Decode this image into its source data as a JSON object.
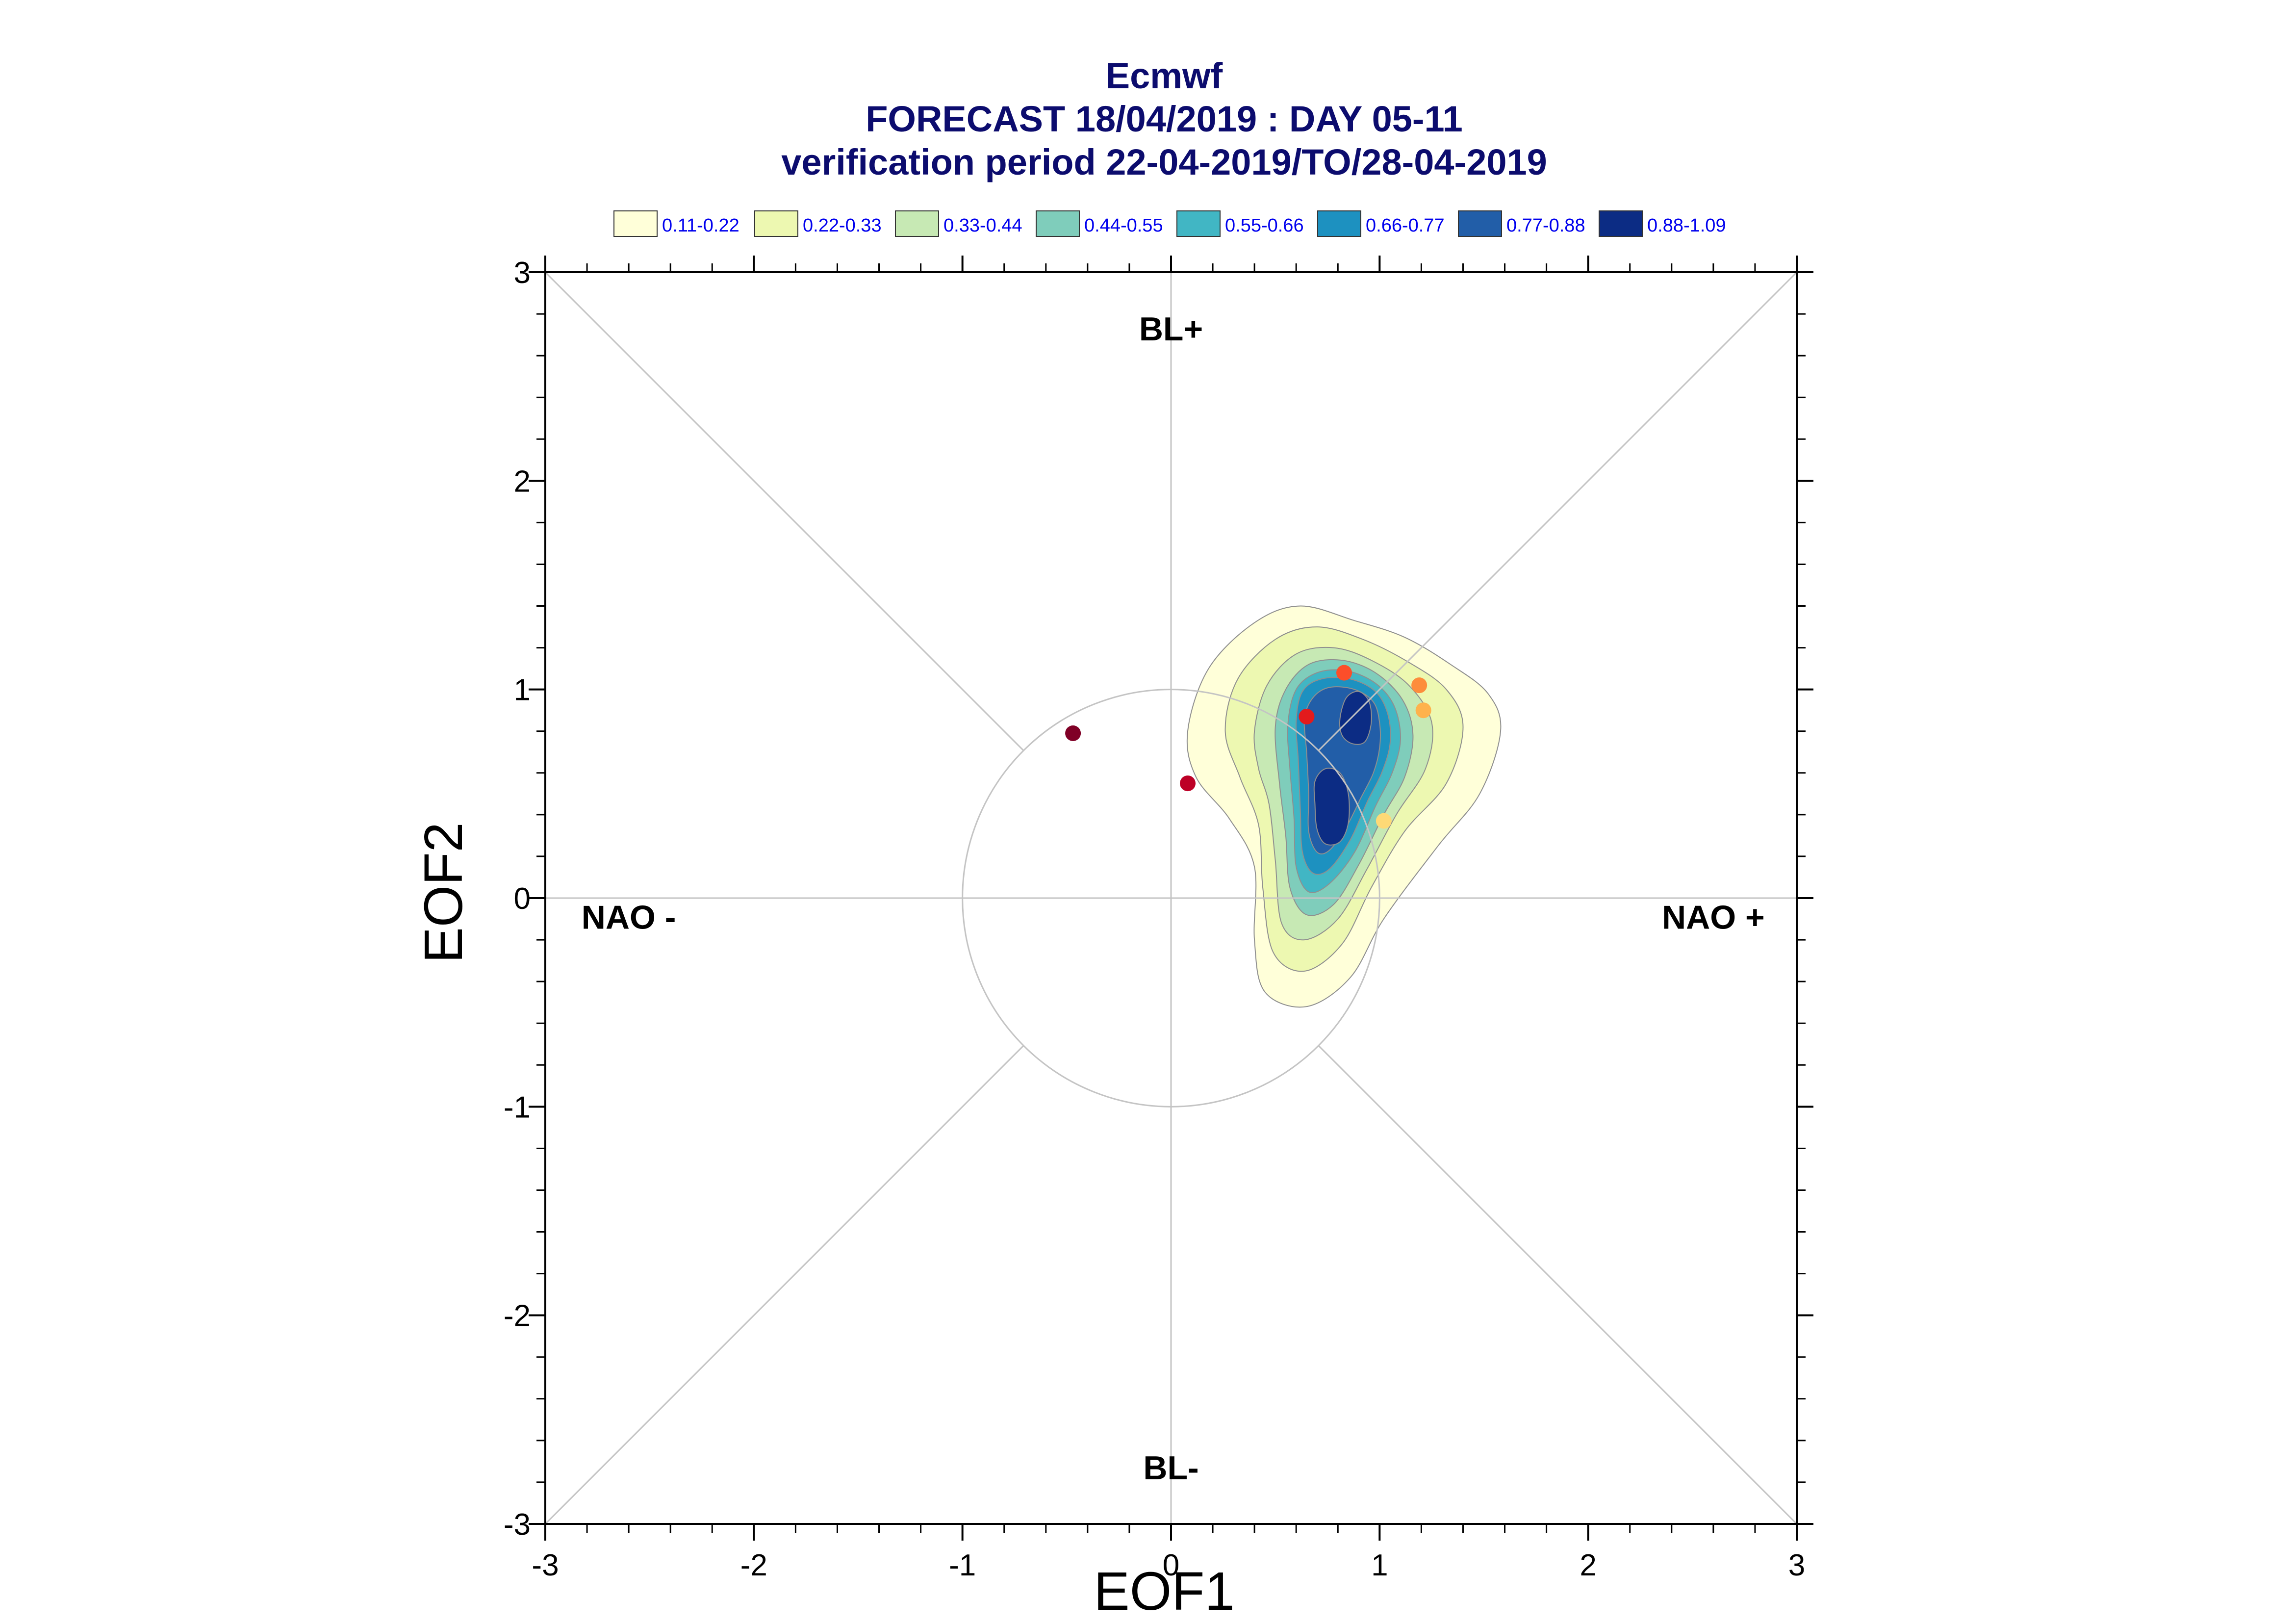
{
  "chart_data": {
    "type": "scatter",
    "title": "Ecmwf",
    "subtitle": "FORECAST 18/04/2019 : DAY 05-11",
    "subtitle2": "verification period 22-04-2019/TO/28-04-2019",
    "xlabel": "EOF1",
    "ylabel": "EOF2",
    "xlim": [
      -3,
      3
    ],
    "ylim": [
      -3,
      3
    ],
    "xticks": [
      "-3",
      "-2",
      "-1",
      "0",
      "1",
      "2",
      "3"
    ],
    "yticks": [
      "-3",
      "-2",
      "-1",
      "0",
      "1",
      "2",
      "3"
    ],
    "grid": false,
    "legend_position": "top",
    "legend": [
      {
        "label": "0.11-0.22",
        "color": "#ffffd9"
      },
      {
        "label": "0.22-0.33",
        "color": "#edf8b1"
      },
      {
        "label": "0.33-0.44",
        "color": "#c7e9b4"
      },
      {
        "label": "0.44-0.55",
        "color": "#7fcdbb"
      },
      {
        "label": "0.55-0.66",
        "color": "#41b6c4"
      },
      {
        "label": "0.66-0.77",
        "color": "#1d91c0"
      },
      {
        "label": "0.77-0.88",
        "color": "#225ea8"
      },
      {
        "label": "0.88-1.09",
        "color": "#0c2c84"
      }
    ],
    "regime_labels": [
      {
        "text": "BL+",
        "x": 0.0,
        "y": 2.73
      },
      {
        "text": "BL-",
        "x": 0.0,
        "y": -2.73
      },
      {
        "text": "NAO -",
        "x": -2.6,
        "y": -0.09
      },
      {
        "text": "NAO +",
        "x": 2.6,
        "y": -0.09
      }
    ],
    "reference_circle_radius": 1,
    "points": [
      {
        "x": -0.47,
        "y": 0.79,
        "color": "#800026"
      },
      {
        "x": 0.08,
        "y": 0.55,
        "color": "#bd0026"
      },
      {
        "x": 0.65,
        "y": 0.87,
        "color": "#e31a1c"
      },
      {
        "x": 0.83,
        "y": 1.08,
        "color": "#fc4e2a"
      },
      {
        "x": 1.19,
        "y": 1.02,
        "color": "#fd8d3c"
      },
      {
        "x": 1.21,
        "y": 0.9,
        "color": "#feb24c"
      },
      {
        "x": 1.02,
        "y": 0.37,
        "color": "#fed976"
      }
    ],
    "density_contours": [
      {
        "level": "0.11-0.22",
        "color": "#ffffd9",
        "points": [
          [
            0.08,
            0.8
          ],
          [
            0.18,
            1.1
          ],
          [
            0.4,
            1.32
          ],
          [
            0.62,
            1.4
          ],
          [
            0.88,
            1.33
          ],
          [
            1.12,
            1.25
          ],
          [
            1.34,
            1.12
          ],
          [
            1.52,
            0.98
          ],
          [
            1.58,
            0.8
          ],
          [
            1.48,
            0.5
          ],
          [
            1.28,
            0.25
          ],
          [
            1.02,
            -0.1
          ],
          [
            0.86,
            -0.38
          ],
          [
            0.65,
            -0.52
          ],
          [
            0.45,
            -0.45
          ],
          [
            0.4,
            -0.2
          ],
          [
            0.4,
            0.15
          ],
          [
            0.28,
            0.38
          ],
          [
            0.12,
            0.58
          ]
        ]
      },
      {
        "level": "0.22-0.33",
        "color": "#edf8b1",
        "points": [
          [
            0.26,
            0.8
          ],
          [
            0.32,
            1.05
          ],
          [
            0.5,
            1.24
          ],
          [
            0.7,
            1.3
          ],
          [
            0.92,
            1.24
          ],
          [
            1.14,
            1.13
          ],
          [
            1.32,
            1.0
          ],
          [
            1.4,
            0.82
          ],
          [
            1.32,
            0.55
          ],
          [
            1.12,
            0.32
          ],
          [
            0.96,
            0.05
          ],
          [
            0.82,
            -0.22
          ],
          [
            0.64,
            -0.35
          ],
          [
            0.49,
            -0.26
          ],
          [
            0.44,
            0.05
          ],
          [
            0.42,
            0.35
          ],
          [
            0.33,
            0.58
          ]
        ]
      },
      {
        "level": "0.33-0.44",
        "color": "#c7e9b4",
        "points": [
          [
            0.4,
            0.8
          ],
          [
            0.46,
            1.02
          ],
          [
            0.6,
            1.17
          ],
          [
            0.78,
            1.2
          ],
          [
            0.96,
            1.14
          ],
          [
            1.14,
            1.02
          ],
          [
            1.25,
            0.84
          ],
          [
            1.22,
            0.62
          ],
          [
            1.08,
            0.4
          ],
          [
            0.94,
            0.14
          ],
          [
            0.8,
            -0.1
          ],
          [
            0.64,
            -0.2
          ],
          [
            0.53,
            -0.12
          ],
          [
            0.5,
            0.18
          ],
          [
            0.47,
            0.45
          ],
          [
            0.42,
            0.62
          ]
        ]
      },
      {
        "level": "0.44-0.55",
        "color": "#7fcdbb",
        "points": [
          [
            0.5,
            0.82
          ],
          [
            0.55,
            1.0
          ],
          [
            0.66,
            1.12
          ],
          [
            0.82,
            1.14
          ],
          [
            0.98,
            1.08
          ],
          [
            1.11,
            0.95
          ],
          [
            1.16,
            0.78
          ],
          [
            1.12,
            0.58
          ],
          [
            1.02,
            0.4
          ],
          [
            0.9,
            0.16
          ],
          [
            0.78,
            -0.03
          ],
          [
            0.65,
            -0.08
          ],
          [
            0.57,
            0.05
          ],
          [
            0.55,
            0.3
          ],
          [
            0.52,
            0.55
          ]
        ]
      },
      {
        "level": "0.55-0.66",
        "color": "#41b6c4",
        "points": [
          [
            0.56,
            0.83
          ],
          [
            0.6,
            1.0
          ],
          [
            0.7,
            1.08
          ],
          [
            0.84,
            1.09
          ],
          [
            0.98,
            1.03
          ],
          [
            1.07,
            0.92
          ],
          [
            1.1,
            0.76
          ],
          [
            1.06,
            0.6
          ],
          [
            0.98,
            0.44
          ],
          [
            0.88,
            0.22
          ],
          [
            0.76,
            0.07
          ],
          [
            0.66,
            0.03
          ],
          [
            0.6,
            0.15
          ],
          [
            0.59,
            0.38
          ],
          [
            0.57,
            0.62
          ]
        ]
      },
      {
        "level": "0.66-0.77",
        "color": "#1d91c0",
        "points": [
          [
            0.6,
            0.85
          ],
          [
            0.63,
            0.99
          ],
          [
            0.72,
            1.05
          ],
          [
            0.86,
            1.05
          ],
          [
            0.98,
            0.99
          ],
          [
            1.04,
            0.88
          ],
          [
            1.05,
            0.74
          ],
          [
            1.01,
            0.6
          ],
          [
            0.94,
            0.46
          ],
          [
            0.86,
            0.28
          ],
          [
            0.76,
            0.14
          ],
          [
            0.68,
            0.12
          ],
          [
            0.63,
            0.22
          ],
          [
            0.62,
            0.42
          ],
          [
            0.61,
            0.66
          ]
        ]
      },
      {
        "level": "0.77-0.88",
        "color": "#225ea8",
        "points": [
          [
            0.64,
            0.86
          ],
          [
            0.68,
            0.96
          ],
          [
            0.76,
            1.01
          ],
          [
            0.88,
            1.0
          ],
          [
            0.97,
            0.94
          ],
          [
            1.0,
            0.84
          ],
          [
            1.0,
            0.72
          ],
          [
            0.97,
            0.6
          ],
          [
            0.91,
            0.48
          ],
          [
            0.84,
            0.34
          ],
          [
            0.76,
            0.23
          ],
          [
            0.7,
            0.22
          ],
          [
            0.66,
            0.32
          ],
          [
            0.66,
            0.5
          ],
          [
            0.65,
            0.7
          ]
        ]
      },
      {
        "level": "0.88-1.09",
        "color": "#0c2c84",
        "points": [
          [
            0.81,
            0.86
          ],
          [
            0.84,
            0.96
          ],
          [
            0.9,
            0.99
          ],
          [
            0.95,
            0.94
          ],
          [
            0.96,
            0.84
          ],
          [
            0.93,
            0.75
          ],
          [
            0.87,
            0.74
          ],
          [
            0.82,
            0.78
          ]
        ]
      },
      {
        "level": "0.88-1.09",
        "color": "#0c2c84",
        "points": [
          [
            0.69,
            0.45
          ],
          [
            0.69,
            0.56
          ],
          [
            0.74,
            0.62
          ],
          [
            0.81,
            0.6
          ],
          [
            0.85,
            0.5
          ],
          [
            0.85,
            0.36
          ],
          [
            0.81,
            0.27
          ],
          [
            0.74,
            0.26
          ],
          [
            0.7,
            0.33
          ]
        ]
      }
    ]
  }
}
